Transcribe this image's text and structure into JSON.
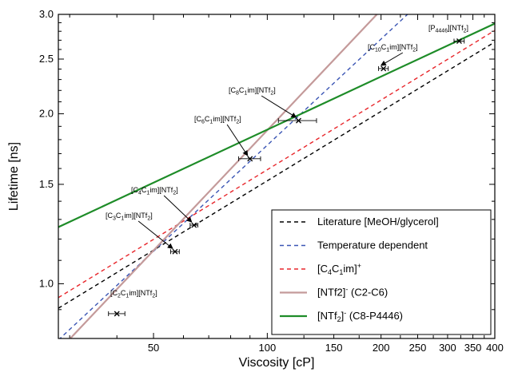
{
  "chart_data": {
    "type": "line",
    "xlabel": "Viscosity [cP]",
    "ylabel": "Lifetime [ns]",
    "x_scale": "log",
    "y_scale": "log",
    "xlim": [
      28,
      400
    ],
    "ylim": [
      0.8,
      3.0
    ],
    "x_ticks": [
      {
        "value": 50,
        "label": "50"
      },
      {
        "value": 100,
        "label": "100"
      },
      {
        "value": 150,
        "label": "150"
      },
      {
        "value": 200,
        "label": "200"
      },
      {
        "value": 250,
        "label": "250"
      },
      {
        "value": 300,
        "label": "300"
      },
      {
        "value": 350,
        "label": "350"
      },
      {
        "value": 400,
        "label": "400"
      }
    ],
    "y_ticks": [
      {
        "value": 1.0,
        "label": "1.0"
      },
      {
        "value": 1.5,
        "label": "1.5"
      },
      {
        "value": 2.0,
        "label": "2.0"
      },
      {
        "value": 2.5,
        "label": "2.5"
      },
      {
        "value": 3.0,
        "label": "3.0"
      }
    ],
    "series": [
      {
        "name": "Literature [MeOH/glycerol]",
        "style": "dashed",
        "color": "#000000",
        "x": [
          28,
          400
        ],
        "y": [
          0.905,
          2.68
        ]
      },
      {
        "name": "Temperature dependent",
        "style": "dashed",
        "color": "#3a55b4",
        "x": [
          28,
          235
        ],
        "y": [
          0.795,
          3.0
        ]
      },
      {
        "name": "[C4C1im]+",
        "style": "dashed",
        "color": "#e8262b",
        "x": [
          28,
          400
        ],
        "y": [
          0.945,
          2.81
        ]
      },
      {
        "name": "[NTf2]- (C2-C6)",
        "style": "solid",
        "color": "#c49a9a",
        "x": [
          28,
          195
        ],
        "y": [
          0.76,
          3.0
        ]
      },
      {
        "name": "[NTf2]- (C8-P4446)",
        "style": "solid",
        "color": "#1e8c28",
        "x": [
          28,
          400
        ],
        "y": [
          1.26,
          2.89
        ]
      }
    ],
    "points": [
      {
        "label": "[C2C1im][NTf2]",
        "x": 40,
        "y": 0.885,
        "xerr": 2
      },
      {
        "label": "[C3C1im][NTf2]",
        "x": 57,
        "y": 1.14,
        "xerr": 1.5
      },
      {
        "label": "[C4C1im][NTf2]",
        "x": 64,
        "y": 1.27,
        "xerr": 1.5
      },
      {
        "label": "[C6C1im][NTf2]",
        "x": 90,
        "y": 1.665,
        "xerr": 6
      },
      {
        "label": "[C8C1im][NTf2]",
        "x": 121,
        "y": 1.945,
        "xerr": 14
      },
      {
        "label": "[C10C1im][NTf2]",
        "x": 203,
        "y": 2.405,
        "xerr": 6
      },
      {
        "label": "[P4446][NTf2]",
        "x": 322,
        "y": 2.69,
        "xerr": 10
      }
    ]
  }
}
